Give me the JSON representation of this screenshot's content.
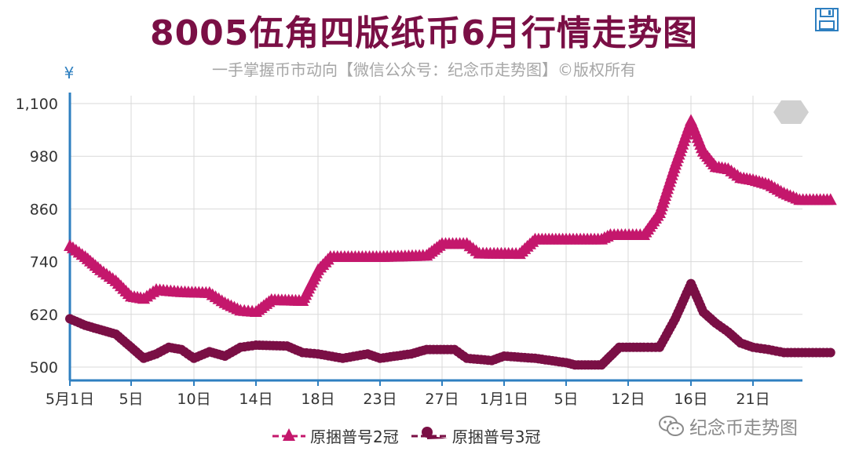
{
  "header": {
    "title": "8005伍角四版纸币6月行情走势图",
    "subtitle": "一手掌握币市动向【微信公众号：纪念币走势图】©版权所有"
  },
  "icons": {
    "save": "floppy-disk-icon",
    "watermark": "wechat-icon"
  },
  "watermark": {
    "text": "纪念币走势图"
  },
  "colors": {
    "accent": "#c4176c",
    "series_2": "#c4176c",
    "series_3": "#7a0f45",
    "axis": "#2e7fc0",
    "title": "#7a0f45"
  },
  "chart_data": {
    "type": "line",
    "yunit": "¥",
    "ylim": [
      500,
      1100
    ],
    "yticks": [
      500,
      620,
      740,
      860,
      980,
      1100
    ],
    "ytick_labels": [
      "500",
      "620",
      "740",
      "860",
      "980",
      "1,100"
    ],
    "xlim": [
      "5月1日",
      "6月23日"
    ],
    "xticks": [
      "5月1日",
      "5日",
      "10日",
      "14日",
      "18日",
      "23日",
      "27日",
      "1月1日",
      "5日",
      "12日",
      "16日",
      "21日"
    ],
    "grid": true,
    "legend_position": "bottom",
    "series": [
      {
        "name": "原捆普号2冠",
        "marker": "triangle",
        "color": "#c4176c",
        "points": [
          [
            "05-01",
            775
          ],
          [
            "05-02",
            750
          ],
          [
            "05-03",
            720
          ],
          [
            "05-04",
            695
          ],
          [
            "05-05",
            660
          ],
          [
            "05-06",
            655
          ],
          [
            "05-07",
            675
          ],
          [
            "05-09",
            670
          ],
          [
            "05-11",
            668
          ],
          [
            "05-12",
            645
          ],
          [
            "05-13",
            628
          ],
          [
            "05-14",
            625
          ],
          [
            "05-15",
            652
          ],
          [
            "05-17",
            650
          ],
          [
            "05-18",
            720
          ],
          [
            "05-19",
            750
          ],
          [
            "05-23",
            750
          ],
          [
            "05-26",
            753
          ],
          [
            "05-27",
            780
          ],
          [
            "05-29",
            780
          ],
          [
            "05-30",
            758
          ],
          [
            "06-02",
            757
          ],
          [
            "06-03",
            790
          ],
          [
            "06-05",
            790
          ],
          [
            "06-09",
            790
          ],
          [
            "06-10",
            800
          ],
          [
            "06-13",
            800
          ],
          [
            "06-14",
            850
          ],
          [
            "06-15",
            960
          ],
          [
            "06-16",
            1060
          ],
          [
            "06-17",
            990
          ],
          [
            "06-18",
            955
          ],
          [
            "06-19",
            950
          ],
          [
            "06-20",
            930
          ],
          [
            "06-21",
            925
          ],
          [
            "06-22",
            915
          ],
          [
            "06-23",
            895
          ],
          [
            "06-24",
            880
          ],
          [
            "06-26",
            880
          ]
        ]
      },
      {
        "name": "原捆普号3冠",
        "marker": "circle",
        "color": "#7a0f45",
        "points": [
          [
            "05-01",
            610
          ],
          [
            "05-02",
            595
          ],
          [
            "05-03",
            585
          ],
          [
            "05-04",
            575
          ],
          [
            "05-05",
            545
          ],
          [
            "05-06",
            520
          ],
          [
            "05-07",
            530
          ],
          [
            "05-08",
            545
          ],
          [
            "05-09",
            540
          ],
          [
            "05-10",
            520
          ],
          [
            "05-11",
            535
          ],
          [
            "05-12",
            525
          ],
          [
            "05-13",
            545
          ],
          [
            "05-14",
            550
          ],
          [
            "05-16",
            548
          ],
          [
            "05-17",
            533
          ],
          [
            "05-18",
            530
          ],
          [
            "05-20",
            520
          ],
          [
            "05-22",
            530
          ],
          [
            "05-23",
            520
          ],
          [
            "05-25",
            530
          ],
          [
            "05-26",
            540
          ],
          [
            "05-28",
            540
          ],
          [
            "05-29",
            520
          ],
          [
            "05-31",
            515
          ],
          [
            "06-01",
            525
          ],
          [
            "06-03",
            520
          ],
          [
            "06-05",
            510
          ],
          [
            "06-06",
            505
          ],
          [
            "06-09",
            505
          ],
          [
            "06-10",
            525
          ],
          [
            "06-11",
            545
          ],
          [
            "06-13",
            545
          ],
          [
            "06-14",
            545
          ],
          [
            "06-15",
            610
          ],
          [
            "06-16",
            690
          ],
          [
            "06-17",
            625
          ],
          [
            "06-18",
            600
          ],
          [
            "06-19",
            580
          ],
          [
            "06-20",
            555
          ],
          [
            "06-21",
            545
          ],
          [
            "06-22",
            540
          ],
          [
            "06-23",
            533
          ],
          [
            "06-26",
            533
          ]
        ]
      }
    ]
  }
}
